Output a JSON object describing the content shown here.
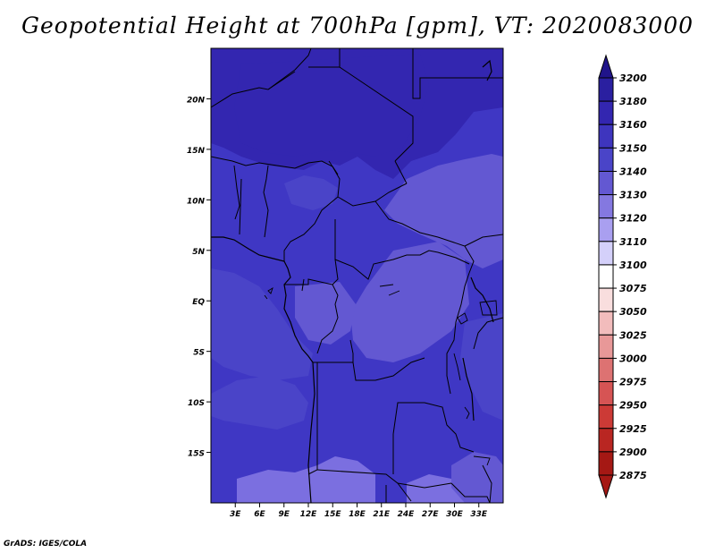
{
  "title": "Geopotential Height at 700hPa [gpm], VT: 2020083000",
  "footer": "GrADS: IGES/COLA",
  "map": {
    "lon_range": [
      0,
      36
    ],
    "lat_range": [
      -20,
      25
    ],
    "lon_ticks": [
      "3E",
      "6E",
      "9E",
      "12E",
      "15E",
      "18E",
      "21E",
      "24E",
      "27E",
      "30E",
      "33E"
    ],
    "lat_ticks": [
      "20N",
      "15N",
      "10N",
      "5N",
      "EQ",
      "5S",
      "10S",
      "15S"
    ]
  },
  "colorbar": {
    "levels": [
      "3200",
      "3180",
      "3160",
      "3150",
      "3140",
      "3130",
      "3120",
      "3110",
      "3100",
      "3075",
      "3050",
      "3025",
      "3000",
      "2975",
      "2950",
      "2925",
      "2900",
      "2875"
    ],
    "colors": [
      "#20148a",
      "#2a1fa0",
      "#3326b0",
      "#3e35be",
      "#4a44c8",
      "#6358d2",
      "#8478e0",
      "#a99ff0",
      "#d4d0fa",
      "#ffffff",
      "#f9dede",
      "#f2bcbc",
      "#e89898",
      "#dd7272",
      "#d65454",
      "#cc3a36",
      "#b92622",
      "#a51814",
      "#8e100c"
    ],
    "tip_top_color": "#20148a",
    "tip_bottom_color": "#a51814"
  },
  "field_colors": {
    "level_3160": "#3326b0",
    "level_3150": "#3f37c4",
    "level_3140": "#4a44c8",
    "level_3130": "#6358d2",
    "level_3120": "#7b6fe0"
  }
}
